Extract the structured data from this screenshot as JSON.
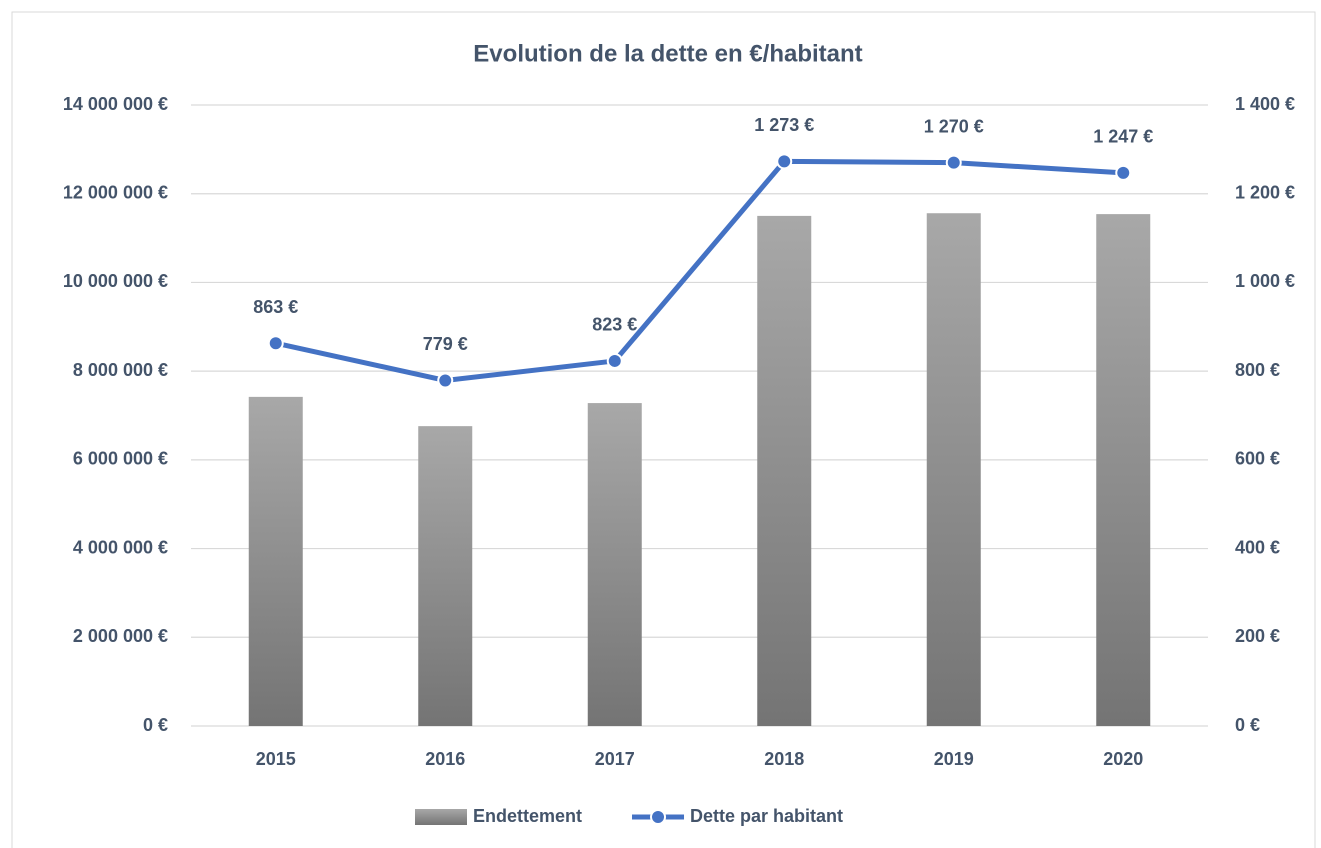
{
  "chart_data": {
    "type": "combo",
    "title": "Evolution de la dette en €/habitant",
    "categories": [
      "2015",
      "2016",
      "2017",
      "2018",
      "2019",
      "2020"
    ],
    "series": [
      {
        "name": "Endettement",
        "type": "bar",
        "color": "#8c8c8c",
        "axis": "y",
        "values": [
          7420000,
          6760000,
          7280000,
          11500000,
          11560000,
          11540000
        ]
      },
      {
        "name": "Dette par habitant",
        "type": "line",
        "color": "#4472c4",
        "axis": "y2",
        "values": [
          863,
          779,
          823,
          1273,
          1270,
          1247
        ],
        "value_labels": [
          "863 €",
          "779 €",
          "823 €",
          "1 273 €",
          "1 270 €",
          "1 247 €"
        ]
      }
    ],
    "ylim": [
      0,
      14000000
    ],
    "yticks": [
      {
        "value": 0,
        "label": "0 €"
      },
      {
        "value": 2000000,
        "label": "2 000 000 €"
      },
      {
        "value": 4000000,
        "label": "4 000 000 €"
      },
      {
        "value": 6000000,
        "label": "6 000 000 €"
      },
      {
        "value": 8000000,
        "label": "8 000 000 €"
      },
      {
        "value": 10000000,
        "label": "10 000 000 €"
      },
      {
        "value": 12000000,
        "label": "12 000 000 €"
      },
      {
        "value": 14000000,
        "label": "14 000 000 €"
      }
    ],
    "y2lim": [
      0,
      1400
    ],
    "y2ticks": [
      {
        "value": 0,
        "label": "0 €"
      },
      {
        "value": 200,
        "label": "200 €"
      },
      {
        "value": 400,
        "label": "400 €"
      },
      {
        "value": 600,
        "label": "600 €"
      },
      {
        "value": 800,
        "label": "800 €"
      },
      {
        "value": 1000,
        "label": "1 000 €"
      },
      {
        "value": 1200,
        "label": "1 200 €"
      },
      {
        "value": 1400,
        "label": "1 400 €"
      }
    ],
    "grid": true,
    "legend": "bottom"
  }
}
